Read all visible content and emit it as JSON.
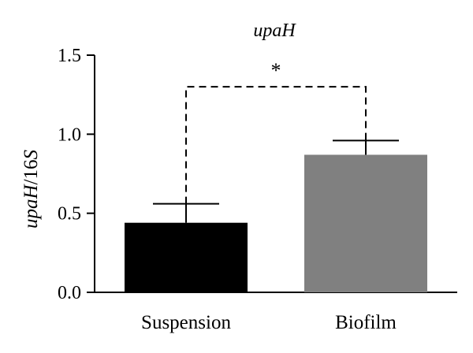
{
  "chart_data": {
    "type": "bar",
    "title": "upaH",
    "ylabel": {
      "italic": "upaH",
      "plain": "/16",
      "italic2": "S"
    },
    "xlabel": "",
    "categories": [
      "Suspension",
      "Biofilm"
    ],
    "values": [
      0.44,
      0.87
    ],
    "errors": [
      0.12,
      0.09
    ],
    "bar_colors": [
      "#000000",
      "#808080"
    ],
    "ylim": [
      0,
      1.5
    ],
    "yticks": [
      "0.0",
      "0.5",
      "1.0",
      "1.5"
    ],
    "ytick_values": [
      0,
      0.5,
      1.0,
      1.5
    ],
    "grid": false,
    "significance": {
      "label": "*",
      "between": [
        0,
        1
      ],
      "y": 1.3
    }
  }
}
